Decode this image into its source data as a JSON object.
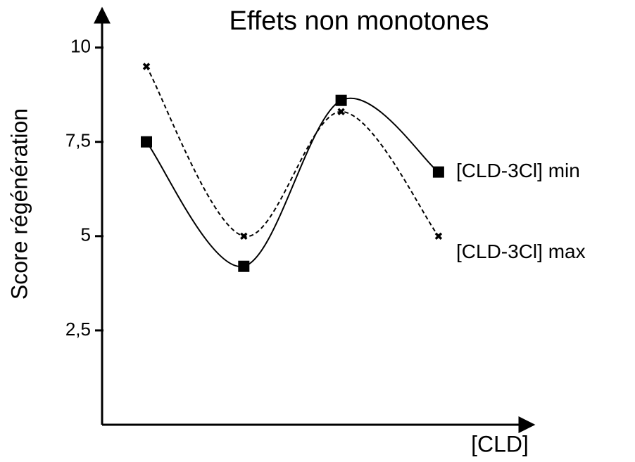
{
  "chart_data": {
    "type": "line",
    "title": "Effets non monotones",
    "y_label": "Score régénération",
    "x_label": "[CLD]",
    "categories": [
      null,
      null,
      null,
      null
    ],
    "series": [
      {
        "name": "[CLD-3Cl] min",
        "color": "#000000",
        "dash": false,
        "marker": "square",
        "values": [
          7.5,
          4.2,
          8.6,
          6.7
        ]
      },
      {
        "name": "[CLD-3Cl] max",
        "color": "#000000",
        "dash": true,
        "marker": "cross",
        "values": [
          9.5,
          5,
          8.3,
          5
        ]
      }
    ],
    "ylim": [
      0,
      11
    ],
    "yticks": [
      {
        "value": 2.5,
        "label": "2,5"
      },
      5,
      {
        "value": 7.5,
        "label": "7,5"
      },
      10
    ],
    "smooth": true
  }
}
